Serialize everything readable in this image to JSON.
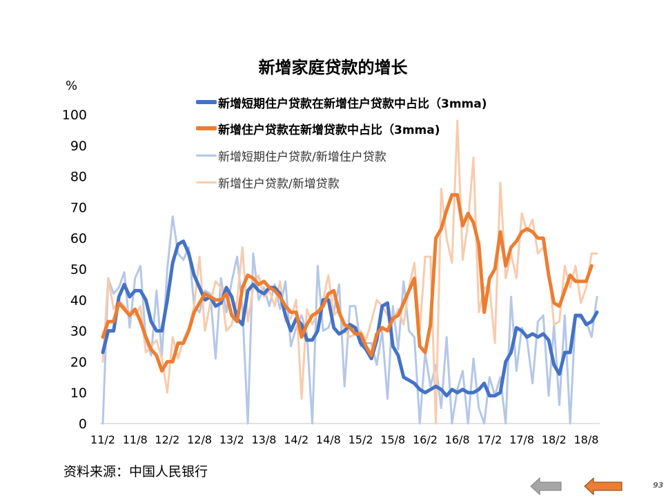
{
  "page": {
    "title": "新增家庭贷款的增长",
    "unit": "%",
    "source": "资料来源：中国人民银行",
    "page_number": "93"
  },
  "legend": [
    {
      "label": "新增短期住户贷款在新增住户贷款中占比（3mma)",
      "color": "#4472C4",
      "weight": "bold"
    },
    {
      "label": "新增住户贷款在新增贷款中占比（3mma)",
      "color": "#ED7D31",
      "weight": "bold"
    },
    {
      "label": "新增短期住户贷款/新增住户贷款",
      "color": "#B4C7E7",
      "weight": "normal"
    },
    {
      "label": "新增住户贷款/新增贷款",
      "color": "#F8CBAD",
      "weight": "normal"
    }
  ],
  "nav": {
    "back_color": "#A6A6A6",
    "next_color": "#ED7D31"
  },
  "chart_data": {
    "type": "line",
    "title": "新增家庭贷款的增长",
    "ylabel": "%",
    "ylim": [
      0,
      100
    ],
    "yticks": [
      0,
      10,
      20,
      30,
      40,
      50,
      60,
      70,
      80,
      90,
      100
    ],
    "xlim": [
      0,
      92
    ],
    "xticks": [
      {
        "label": "11/2",
        "x": 0
      },
      {
        "label": "11/8",
        "x": 6
      },
      {
        "label": "12/2",
        "x": 12
      },
      {
        "label": "12/8",
        "x": 18
      },
      {
        "label": "13/2",
        "x": 24
      },
      {
        "label": "13/8",
        "x": 30
      },
      {
        "label": "14/2",
        "x": 36
      },
      {
        "label": "14/8",
        "x": 42
      },
      {
        "label": "15/2",
        "x": 48
      },
      {
        "label": "15/8",
        "x": 54
      },
      {
        "label": "16/2",
        "x": 60
      },
      {
        "label": "16/8",
        "x": 66
      },
      {
        "label": "17/2",
        "x": 72
      },
      {
        "label": "17/8",
        "x": 78
      },
      {
        "label": "18/2",
        "x": 84
      },
      {
        "label": "18/8",
        "x": 90
      }
    ],
    "series": [
      {
        "name": "新增短期住户贷款/新增住户贷款",
        "color": "#B4C7E7",
        "width": 3,
        "values": [
          0,
          47,
          42,
          44,
          49,
          31,
          47,
          51,
          27,
          22,
          43,
          22,
          50,
          67,
          55,
          53,
          57,
          38,
          36,
          43,
          42,
          21,
          47,
          36,
          46,
          54,
          37,
          0,
          55,
          40,
          44,
          38,
          45,
          37,
          46,
          25,
          31,
          35,
          29,
          0,
          51,
          30,
          31,
          36,
          45,
          12,
          38,
          38,
          25,
          26,
          26,
          19,
          30,
          8,
          38,
          24,
          46,
          30,
          28,
          0,
          23,
          12,
          19,
          5,
          28,
          0,
          11,
          17,
          0,
          21,
          5,
          0,
          15,
          9,
          15,
          0,
          41,
          17,
          31,
          27,
          13,
          33,
          35,
          9,
          32,
          6,
          35,
          0,
          35,
          34,
          33,
          28,
          41
        ]
      },
      {
        "name": "新增住户贷款/新增贷款",
        "color": "#F8CBAD",
        "width": 3,
        "values": [
          20,
          47,
          37,
          40,
          38,
          36,
          35,
          38,
          23,
          25,
          27,
          21,
          10,
          28,
          21,
          27,
          31,
          38,
          54,
          30,
          39,
          46,
          44,
          30,
          32,
          40,
          57,
          33,
          44,
          48,
          41,
          43,
          38,
          46,
          33,
          34,
          40,
          8,
          37,
          32,
          36,
          40,
          48,
          35,
          37,
          30,
          28,
          29,
          30,
          27,
          33,
          40,
          38,
          35,
          33,
          37,
          32,
          44,
          52,
          30,
          54,
          54,
          0,
          76,
          60,
          52,
          98,
          53,
          65,
          86,
          36,
          44,
          44,
          26,
          78,
          47,
          55,
          47,
          68,
          62,
          66,
          55,
          57,
          50,
          32,
          33,
          51,
          44,
          51,
          39,
          44,
          55,
          55
        ]
      },
      {
        "name": "新增短期住户贷款在新增住户贷款中占比（3mma)",
        "color": "#4472C4",
        "width": 5,
        "values": [
          23,
          30,
          30,
          41,
          45,
          41,
          43,
          43,
          40,
          33,
          30,
          30,
          40,
          52,
          58,
          59,
          55,
          48,
          44,
          40,
          41,
          38,
          39,
          44,
          41,
          34,
          32,
          43,
          45,
          43,
          42,
          44,
          44,
          42,
          35,
          30,
          34,
          32,
          27,
          27,
          30,
          40,
          40,
          31,
          29,
          30,
          32,
          31,
          26,
          24,
          21,
          27,
          38,
          39,
          25,
          22,
          15,
          14,
          13,
          11,
          10,
          11,
          12,
          11,
          9,
          11,
          10,
          11,
          10,
          10,
          11,
          13,
          9,
          9,
          10,
          20,
          23,
          31,
          30,
          28,
          29,
          28,
          29,
          27,
          19,
          16,
          23,
          23,
          35,
          35,
          32,
          33,
          36
        ]
      },
      {
        "name": "新增住户贷款在新增贷款中占比（3mma)",
        "color": "#ED7D31",
        "width": 5,
        "values": [
          28,
          33,
          33,
          39,
          37,
          35,
          37,
          33,
          28,
          24,
          22,
          17,
          20,
          20,
          26,
          26,
          30,
          36,
          39,
          42,
          41,
          40,
          40,
          42,
          35,
          33,
          44,
          48,
          47,
          45,
          46,
          44,
          43,
          41,
          38,
          36,
          36,
          28,
          32,
          35,
          36,
          38,
          42,
          43,
          36,
          32,
          31,
          29,
          29,
          25,
          22,
          29,
          31,
          30,
          34,
          35,
          39,
          43,
          47,
          25,
          23,
          32,
          60,
          63,
          69,
          74,
          74,
          64,
          68,
          65,
          58,
          36,
          47,
          50,
          62,
          51,
          57,
          59,
          62,
          63,
          62,
          60,
          60,
          48,
          39,
          38,
          43,
          48,
          46,
          46,
          46,
          51
        ]
      }
    ]
  }
}
